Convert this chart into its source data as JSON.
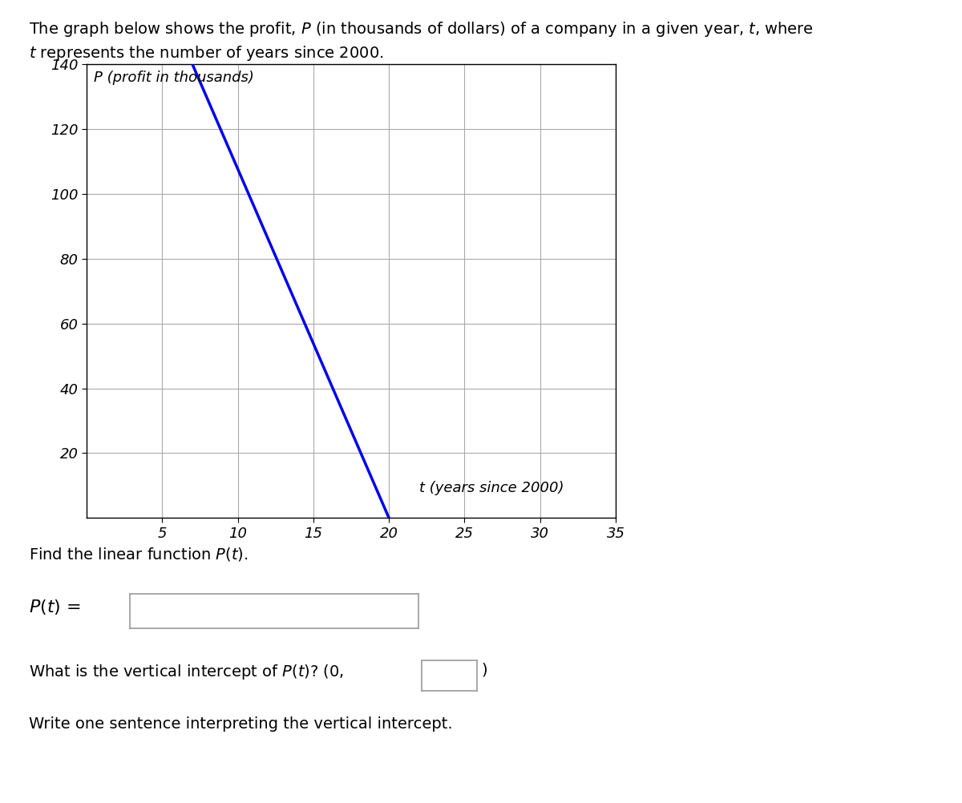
{
  "title_line1": "The graph below shows the profit, $P$ (in thousands of dollars) of a company in a given year, $t$, where",
  "title_line2": "$t$ represents the number of years since 2000.",
  "ylabel_inside": "P (profit in thousands)",
  "xlabel_inside": "t (years since 2000)",
  "xlim": [
    0,
    35
  ],
  "ylim": [
    0,
    140
  ],
  "xticks": [
    5,
    10,
    15,
    20,
    25,
    30,
    35
  ],
  "yticks": [
    20,
    40,
    60,
    80,
    100,
    120,
    140
  ],
  "line_x": [
    7,
    20
  ],
  "line_y": [
    140,
    0
  ],
  "line_color": "#0000EE",
  "line_width": 2.5,
  "grid_color": "#aaaaaa",
  "background_color": "#ffffff",
  "font_size_title": 14,
  "font_size_axis_label": 13,
  "font_size_tick": 13,
  "font_size_body": 14,
  "fig_width": 12.0,
  "fig_height": 10.02
}
